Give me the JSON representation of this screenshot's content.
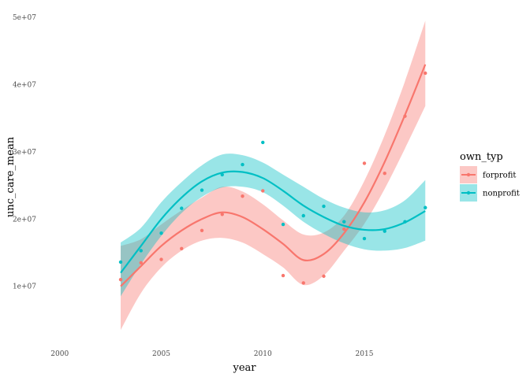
{
  "chart_data": {
    "type": "scatter",
    "title": "",
    "xlabel": "year",
    "ylabel": "unc_care_mean",
    "xlim": [
      1999,
      2019
    ],
    "ylim": [
      2000000,
      52000000
    ],
    "x_ticks": [
      2000,
      2005,
      2010,
      2015
    ],
    "x_tick_labels": [
      "2000",
      "2005",
      "2010",
      "2015"
    ],
    "y_ticks": [
      10000000,
      20000000,
      30000000,
      40000000,
      50000000
    ],
    "y_tick_labels": [
      "1e+07",
      "2e+07",
      "3e+07",
      "4e+07",
      "5e+07"
    ],
    "grid": false,
    "legend": {
      "title": "own_typ",
      "position": "right"
    },
    "series": [
      {
        "name": "forprofit",
        "color": "#F8766D",
        "band_color": "#F8766D",
        "points": [
          [
            2003,
            11000000
          ],
          [
            2004,
            13500000
          ],
          [
            2005,
            14000000
          ],
          [
            2006,
            15600000
          ],
          [
            2007,
            18300000
          ],
          [
            2008,
            20700000
          ],
          [
            2009,
            23400000
          ],
          [
            2010,
            24200000
          ],
          [
            2011,
            11600000
          ],
          [
            2012,
            10500000
          ],
          [
            2013,
            11500000
          ],
          [
            2014,
            18500000
          ],
          [
            2015,
            28300000
          ],
          [
            2016,
            26800000
          ],
          [
            2017,
            35300000
          ],
          [
            2018,
            41700000
          ]
        ],
        "smooth": [
          [
            2003,
            10000000
          ],
          [
            2004,
            13000000
          ],
          [
            2005,
            16000000
          ],
          [
            2006,
            18300000
          ],
          [
            2007,
            20000000
          ],
          [
            2008,
            21000000
          ],
          [
            2009,
            20300000
          ],
          [
            2010,
            18500000
          ],
          [
            2011,
            16300000
          ],
          [
            2012,
            13900000
          ],
          [
            2013,
            14800000
          ],
          [
            2014,
            17900000
          ],
          [
            2015,
            22500000
          ],
          [
            2016,
            28500000
          ],
          [
            2017,
            35500000
          ],
          [
            2018,
            43000000
          ]
        ],
        "band_upper": [
          [
            2003,
            16000000
          ],
          [
            2004,
            17000000
          ],
          [
            2005,
            19200000
          ],
          [
            2006,
            21300000
          ],
          [
            2007,
            23200000
          ],
          [
            2008,
            24800000
          ],
          [
            2009,
            24100000
          ],
          [
            2010,
            22200000
          ],
          [
            2011,
            19800000
          ],
          [
            2012,
            17700000
          ],
          [
            2013,
            18000000
          ],
          [
            2014,
            20500000
          ],
          [
            2015,
            25700000
          ],
          [
            2016,
            32500000
          ],
          [
            2017,
            40500000
          ],
          [
            2018,
            49500000
          ]
        ],
        "band_lower": [
          [
            2003,
            3500000
          ],
          [
            2004,
            9000000
          ],
          [
            2005,
            12800000
          ],
          [
            2006,
            15300000
          ],
          [
            2007,
            16800000
          ],
          [
            2008,
            17200000
          ],
          [
            2009,
            16500000
          ],
          [
            2010,
            14800000
          ],
          [
            2011,
            12800000
          ],
          [
            2012,
            10200000
          ],
          [
            2013,
            11600000
          ],
          [
            2014,
            15300000
          ],
          [
            2015,
            19300000
          ],
          [
            2016,
            24500000
          ],
          [
            2017,
            30500000
          ],
          [
            2018,
            36800000
          ]
        ]
      },
      {
        "name": "nonprofit",
        "color": "#00BFC4",
        "band_color": "#00BFC4",
        "points": [
          [
            2003,
            13600000
          ],
          [
            2004,
            15300000
          ],
          [
            2005,
            17900000
          ],
          [
            2006,
            21600000
          ],
          [
            2007,
            24300000
          ],
          [
            2008,
            26600000
          ],
          [
            2009,
            28100000
          ],
          [
            2010,
            31400000
          ],
          [
            2011,
            19200000
          ],
          [
            2012,
            20500000
          ],
          [
            2013,
            21900000
          ],
          [
            2014,
            19600000
          ],
          [
            2015,
            17100000
          ],
          [
            2016,
            18200000
          ],
          [
            2017,
            19600000
          ],
          [
            2018,
            21700000
          ]
        ],
        "smooth": [
          [
            2003,
            12000000
          ],
          [
            2004,
            16000000
          ],
          [
            2005,
            20000000
          ],
          [
            2006,
            23200000
          ],
          [
            2007,
            25600000
          ],
          [
            2008,
            26900000
          ],
          [
            2009,
            27000000
          ],
          [
            2010,
            26100000
          ],
          [
            2011,
            24200000
          ],
          [
            2012,
            22000000
          ],
          [
            2013,
            20300000
          ],
          [
            2014,
            19000000
          ],
          [
            2015,
            18400000
          ],
          [
            2016,
            18500000
          ],
          [
            2017,
            19500000
          ],
          [
            2018,
            21200000
          ]
        ],
        "band_upper": [
          [
            2003,
            16500000
          ],
          [
            2004,
            18700000
          ],
          [
            2005,
            22500000
          ],
          [
            2006,
            25500000
          ],
          [
            2007,
            28000000
          ],
          [
            2008,
            29600000
          ],
          [
            2009,
            29500000
          ],
          [
            2010,
            28400000
          ],
          [
            2011,
            26600000
          ],
          [
            2012,
            24800000
          ],
          [
            2013,
            23000000
          ],
          [
            2014,
            21700000
          ],
          [
            2015,
            21000000
          ],
          [
            2016,
            21300000
          ],
          [
            2017,
            22800000
          ],
          [
            2018,
            25800000
          ]
        ],
        "band_lower": [
          [
            2003,
            8500000
          ],
          [
            2004,
            13300000
          ],
          [
            2005,
            17500000
          ],
          [
            2006,
            20900000
          ],
          [
            2007,
            23300000
          ],
          [
            2008,
            24700000
          ],
          [
            2009,
            24800000
          ],
          [
            2010,
            24000000
          ],
          [
            2011,
            22000000
          ],
          [
            2012,
            19600000
          ],
          [
            2013,
            17800000
          ],
          [
            2014,
            16400000
          ],
          [
            2015,
            15500000
          ],
          [
            2016,
            15300000
          ],
          [
            2017,
            15700000
          ],
          [
            2018,
            16800000
          ]
        ]
      }
    ]
  }
}
